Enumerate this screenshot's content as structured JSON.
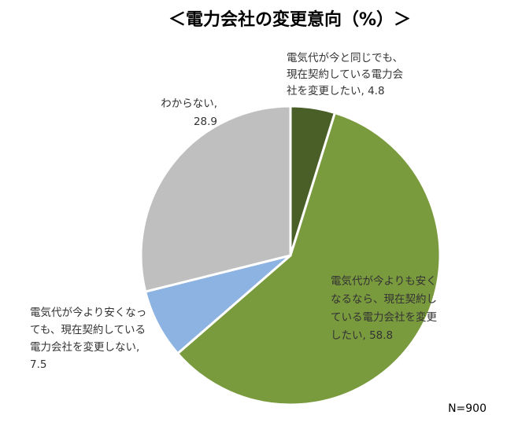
{
  "chart_data": {
    "type": "pie",
    "title": "＜電力会社の変更意向（%）＞",
    "note": "N=900",
    "slices": [
      {
        "lines": [
          "電気代が今と同じでも、",
          "現在契約している電力会",
          "社を変更したい, 4.8"
        ],
        "label": "電気代が今と同じでも、現在契約している電力会社を変更したい",
        "value": 4.8,
        "color": "#4a5f28"
      },
      {
        "lines": [
          "電気代が今よりも安く",
          "なるなら、現在契約し",
          "ている電力会社を変更",
          "したい, 58.8"
        ],
        "label": "電気代が今よりも安くなるなら、現在契約している電力会社を変更したい",
        "value": 58.8,
        "color": "#7a9a3e"
      },
      {
        "lines": [
          "電気代が今より安くなっ",
          "ても、現在契約している",
          "電力会社を変更しない,",
          "7.5"
        ],
        "label": "電気代が今より安くなっても、現在契約している電力会社を変更しない",
        "value": 7.5,
        "color": "#8db3e2"
      },
      {
        "lines": [
          "わからない,",
          "28.9"
        ],
        "label": "わからない",
        "value": 28.9,
        "color": "#bfbfbf"
      }
    ]
  }
}
